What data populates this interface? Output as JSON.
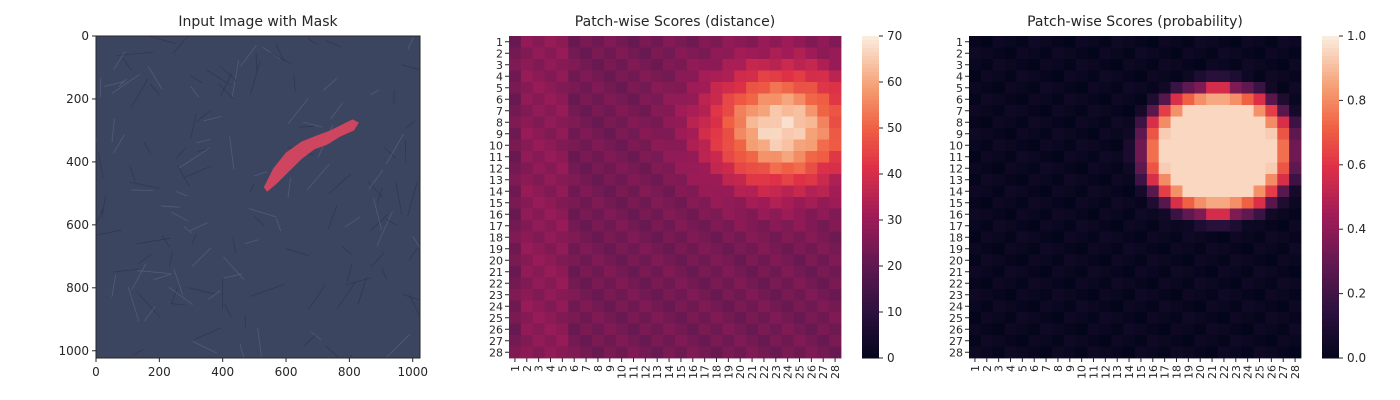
{
  "figure": {
    "panel_titles": [
      "Input Image with Mask",
      "Patch-wise Scores (distance)",
      "Patch-wise Scores (probability)"
    ]
  },
  "chart_data": [
    {
      "type": "image",
      "title": "Input Image with Mask",
      "xlabel": "",
      "ylabel": "",
      "xlim": [
        0,
        1023
      ],
      "ylim": [
        1023,
        0
      ],
      "x_ticks": [
        "0",
        "200",
        "400",
        "600",
        "800",
        "1000"
      ],
      "y_ticks": [
        "0",
        "200",
        "400",
        "600",
        "800",
        "1000"
      ],
      "x_tick_values": [
        0,
        200,
        400,
        600,
        800,
        1000
      ],
      "y_tick_values": [
        0,
        200,
        400,
        600,
        800,
        1000
      ],
      "background_color": "#3b4560",
      "mask_color": "#e8455f",
      "mask_path_data_units": [
        [
          530,
          480
        ],
        [
          560,
          420
        ],
        [
          600,
          370
        ],
        [
          650,
          335
        ],
        [
          700,
          315
        ],
        [
          740,
          300
        ],
        [
          780,
          280
        ],
        [
          810,
          265
        ],
        [
          830,
          275
        ],
        [
          815,
          300
        ],
        [
          770,
          320
        ],
        [
          730,
          345
        ],
        [
          690,
          360
        ],
        [
          650,
          390
        ],
        [
          610,
          430
        ],
        [
          570,
          470
        ],
        [
          540,
          495
        ]
      ]
    },
    {
      "type": "heatmap",
      "title": "Patch-wise Scores (distance)",
      "x_categories": [
        "1",
        "2",
        "3",
        "4",
        "5",
        "6",
        "7",
        "8",
        "9",
        "10",
        "11",
        "12",
        "13",
        "14",
        "15",
        "16",
        "17",
        "18",
        "19",
        "20",
        "21",
        "22",
        "23",
        "24",
        "25",
        "26",
        "27",
        "28"
      ],
      "y_categories": [
        "1",
        "2",
        "3",
        "4",
        "5",
        "6",
        "7",
        "8",
        "9",
        "10",
        "11",
        "12",
        "13",
        "14",
        "15",
        "16",
        "17",
        "18",
        "19",
        "20",
        "21",
        "22",
        "23",
        "24",
        "25",
        "26",
        "27",
        "28"
      ],
      "colorbar": {
        "min": 0,
        "max": 70,
        "ticks": [
          "0",
          "10",
          "20",
          "30",
          "40",
          "50",
          "60",
          "70"
        ],
        "tick_values": [
          0,
          10,
          20,
          30,
          40,
          50,
          60,
          70
        ],
        "colormap": "rocket"
      },
      "model": {
        "baseline": 24,
        "left_band": {
          "columns": [
            2,
            3,
            4,
            5
          ],
          "value": 28
        },
        "peak": {
          "row": 8.5,
          "col": 23.5,
          "value": 68,
          "sigma_row": 3.6,
          "sigma_col": 4.3
        },
        "note": ""
      }
    },
    {
      "type": "heatmap",
      "title": "Patch-wise Scores (probability)",
      "x_categories": [
        "1",
        "2",
        "3",
        "4",
        "5",
        "6",
        "7",
        "8",
        "9",
        "10",
        "11",
        "12",
        "13",
        "14",
        "15",
        "16",
        "17",
        "18",
        "19",
        "20",
        "21",
        "22",
        "23",
        "24",
        "25",
        "26",
        "27",
        "28"
      ],
      "y_categories": [
        "1",
        "2",
        "3",
        "4",
        "5",
        "6",
        "7",
        "8",
        "9",
        "10",
        "11",
        "12",
        "13",
        "14",
        "15",
        "16",
        "17",
        "18",
        "19",
        "20",
        "21",
        "22",
        "23",
        "24",
        "25",
        "26",
        "27",
        "28"
      ],
      "colorbar": {
        "min": 0.0,
        "max": 1.0,
        "ticks": [
          "0.0",
          "0.2",
          "0.4",
          "0.6",
          "0.8",
          "1.0"
        ],
        "tick_values": [
          0.0,
          0.2,
          0.4,
          0.6,
          0.8,
          1.0
        ],
        "colormap": "rocket"
      },
      "model": {
        "center": {
          "row": 10.5,
          "col": 21.5
        },
        "radius_row": 5.6,
        "radius_col": 6.3,
        "core_value": 0.96,
        "edge_value": 0.55
      }
    }
  ]
}
